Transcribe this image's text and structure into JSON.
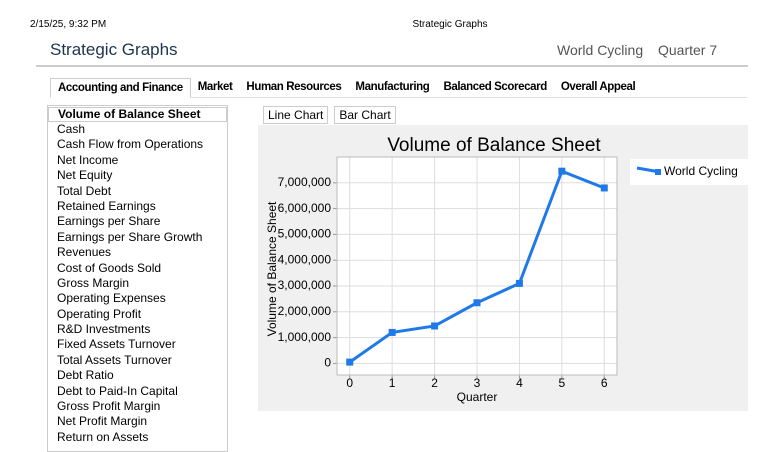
{
  "status_bar": {
    "timestamp": "2/15/25, 9:32 PM",
    "title": "Strategic Graphs"
  },
  "header": {
    "title": "Strategic Graphs",
    "company": "World Cycling",
    "period": "Quarter 7"
  },
  "tabs": [
    "Accounting and Finance",
    "Market",
    "Human Resources",
    "Manufacturing",
    "Balanced Scorecard",
    "Overall Appeal"
  ],
  "metrics": [
    "Volume of Balance Sheet",
    "Cash",
    "Cash Flow from Operations",
    "Net Income",
    "Net Equity",
    "Total Debt",
    "Retained Earnings",
    "Earnings per Share",
    "Earnings per Share Growth",
    "Revenues",
    "Cost of Goods Sold",
    "Gross Margin",
    "Operating Expenses",
    "Operating Profit",
    "R&D Investments",
    "Fixed Assets Turnover",
    "Total Assets Turnover",
    "Debt Ratio",
    "Debt to Paid-In Capital",
    "Gross Profit Margin",
    "Net Profit Margin",
    "Return on Assets"
  ],
  "chart_buttons": [
    "Line Chart",
    "Bar Chart"
  ],
  "chart_data": {
    "type": "line",
    "title": "Volume of Balance Sheet",
    "x_label": "Quarter",
    "y_label": "Volume of Balance Sheet",
    "x": [
      0,
      1,
      2,
      3,
      4,
      5,
      6
    ],
    "series": [
      {
        "name": "World Cycling",
        "color": "#1f7ae8",
        "values": [
          50000,
          1200000,
          1450000,
          2350000,
          3100000,
          7450000,
          6800000
        ]
      }
    ],
    "xlim": [
      -0.3,
      6.3
    ],
    "xticks": [
      0,
      1,
      2,
      3,
      4,
      5,
      6
    ],
    "ylim": [
      -450000,
      8000000
    ],
    "yticks": [
      0,
      {
        "value": 1000000,
        "label": "1,000,000"
      },
      {
        "value": 2000000,
        "label": "2,000,000"
      },
      {
        "value": 3000000,
        "label": "3,000,000"
      },
      {
        "value": 4000000,
        "label": "4,000,000"
      },
      {
        "value": 5000000,
        "label": "5,000,000"
      },
      {
        "value": 6000000,
        "label": "6,000,000"
      },
      {
        "value": 7000000,
        "label": "7,000,000"
      }
    ],
    "grid": true,
    "legend": "right"
  }
}
